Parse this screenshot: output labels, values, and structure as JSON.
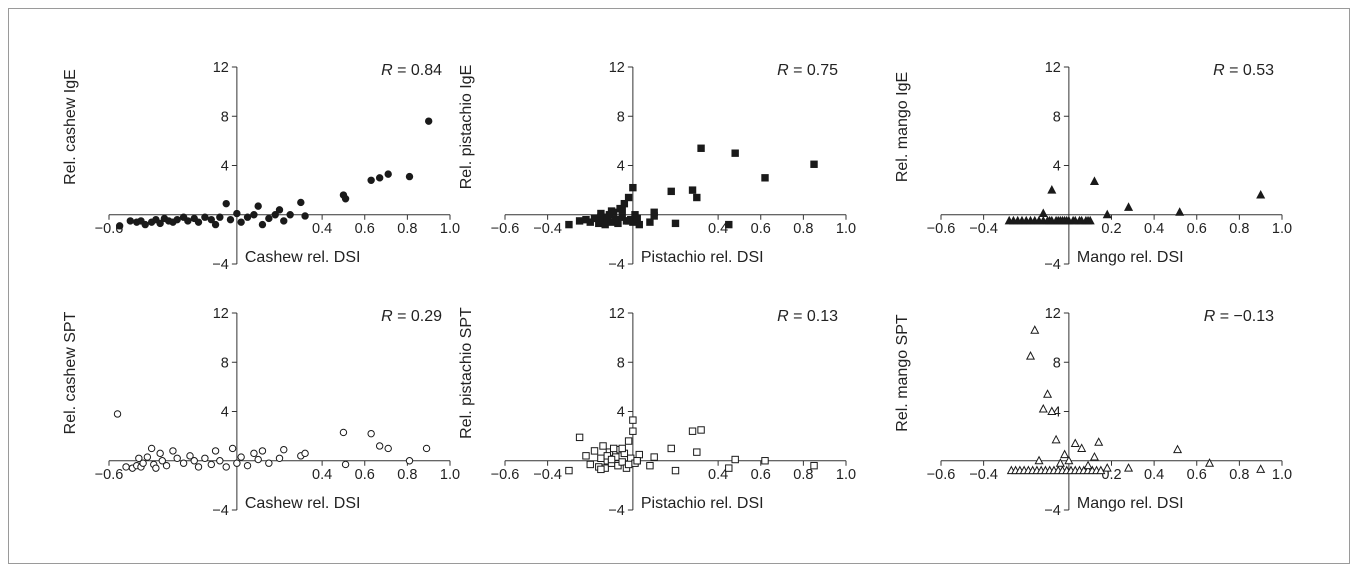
{
  "figure": {
    "panel_count": 6,
    "point_color": "#1a1a1a",
    "axis_color": "#333333"
  },
  "chart_data": [
    {
      "type": "scatter",
      "marker": "circle-filled",
      "xlabel": "Cashew rel. DSI",
      "ylabel": "Rel. cashew IgE",
      "annotation": {
        "italic": "R",
        "text": " = 0.84"
      },
      "xlim": [
        -0.6,
        1.0
      ],
      "ylim": [
        -4,
        12
      ],
      "xticks": [
        "−0.6",
        "0.4",
        "0.6",
        "0.8",
        "1.0"
      ],
      "yticks": [
        "12",
        "8",
        "4",
        "−4"
      ],
      "x": [
        -0.55,
        -0.5,
        -0.47,
        -0.45,
        -0.43,
        -0.4,
        -0.38,
        -0.36,
        -0.34,
        -0.32,
        -0.3,
        -0.28,
        -0.25,
        -0.23,
        -0.2,
        -0.18,
        -0.15,
        -0.12,
        -0.1,
        -0.08,
        -0.05,
        -0.03,
        0.0,
        0.02,
        0.05,
        0.08,
        0.1,
        0.12,
        0.15,
        0.18,
        0.2,
        0.22,
        0.25,
        0.3,
        0.32,
        0.5,
        0.51,
        0.63,
        0.67,
        0.71,
        0.81,
        0.9
      ],
      "y": [
        -0.9,
        -0.5,
        -0.6,
        -0.5,
        -0.8,
        -0.6,
        -0.4,
        -0.7,
        -0.3,
        -0.5,
        -0.6,
        -0.4,
        -0.2,
        -0.5,
        -0.3,
        -0.6,
        -0.2,
        -0.4,
        -0.8,
        -0.2,
        0.9,
        -0.4,
        0.1,
        -0.6,
        -0.2,
        0.0,
        0.7,
        -0.8,
        -0.3,
        0.0,
        0.4,
        -0.5,
        0.0,
        1.0,
        -0.1,
        1.6,
        1.3,
        2.8,
        3.0,
        3.3,
        3.1,
        7.6
      ]
    },
    {
      "type": "scatter",
      "marker": "square-filled",
      "xlabel": "Pistachio rel. DSI",
      "ylabel": "Rel. pistachio IgE",
      "annotation": {
        "italic": "R",
        "text": " = 0.75"
      },
      "xlim": [
        -0.6,
        1.0
      ],
      "ylim": [
        -4,
        12
      ],
      "xticks": [
        "−0.6",
        "−0.4",
        "0.4",
        "0.6",
        "0.8",
        "1.0"
      ],
      "yticks": [
        "12",
        "8",
        "4",
        "−4"
      ],
      "x": [
        -0.3,
        -0.25,
        -0.22,
        -0.2,
        -0.18,
        -0.16,
        -0.15,
        -0.14,
        -0.13,
        -0.12,
        -0.11,
        -0.1,
        -0.09,
        -0.08,
        -0.07,
        -0.06,
        -0.05,
        -0.04,
        -0.03,
        -0.02,
        -0.01,
        0.0,
        0.01,
        0.02,
        0.03,
        -0.15,
        -0.12,
        -0.1,
        -0.05,
        -0.02,
        0.0,
        0.02,
        0.08,
        0.1,
        0.1,
        0.18,
        0.2,
        0.28,
        0.3,
        0.32,
        0.45,
        0.48,
        0.62,
        0.85
      ],
      "y": [
        -0.8,
        -0.5,
        -0.4,
        -0.6,
        -0.3,
        -0.7,
        -0.2,
        -0.5,
        -0.8,
        -0.3,
        0.0,
        -0.6,
        0.2,
        -0.4,
        -0.7,
        0.5,
        -0.2,
        0.9,
        -0.5,
        1.4,
        -0.4,
        -0.6,
        0.0,
        -0.3,
        -0.8,
        0.1,
        -0.2,
        0.3,
        0.4,
        -0.5,
        2.2,
        -0.3,
        -0.6,
        -0.1,
        0.2,
        1.9,
        -0.7,
        2.0,
        1.4,
        5.4,
        -0.8,
        5.0,
        3.0,
        4.1
      ]
    },
    {
      "type": "scatter",
      "marker": "triangle-filled",
      "xlabel": "Mango rel. DSI",
      "ylabel": "Rel. mango IgE",
      "annotation": {
        "italic": "R",
        "text": " = 0.53"
      },
      "xlim": [
        -0.6,
        1.0
      ],
      "ylim": [
        -4,
        12
      ],
      "xticks": [
        "−0.6",
        "−0.4",
        "0.2",
        "0.4",
        "0.6",
        "0.8",
        "1.0"
      ],
      "yticks": [
        "12",
        "8",
        "4",
        "−4"
      ],
      "x": [
        -0.28,
        -0.26,
        -0.24,
        -0.22,
        -0.2,
        -0.18,
        -0.16,
        -0.14,
        -0.12,
        -0.1,
        -0.09,
        -0.08,
        -0.06,
        -0.05,
        -0.04,
        -0.03,
        -0.02,
        -0.01,
        0.0,
        0.02,
        0.03,
        0.05,
        0.06,
        0.08,
        0.09,
        0.1,
        -0.12,
        -0.08,
        0.12,
        0.18,
        0.28,
        0.52,
        0.9
      ],
      "y": [
        -0.5,
        -0.5,
        -0.5,
        -0.5,
        -0.5,
        -0.5,
        -0.5,
        -0.5,
        -0.5,
        -0.5,
        -0.5,
        -0.5,
        -0.5,
        -0.5,
        -0.5,
        -0.5,
        -0.5,
        -0.5,
        -0.5,
        -0.5,
        -0.5,
        -0.5,
        -0.5,
        -0.5,
        -0.5,
        -0.5,
        0.1,
        2.0,
        2.7,
        0.0,
        0.6,
        0.2,
        1.6
      ]
    },
    {
      "type": "scatter",
      "marker": "circle-open",
      "xlabel": "Cashew rel. DSI",
      "ylabel": "Rel. cashew SPT",
      "annotation": {
        "italic": "R",
        "text": " = 0.29"
      },
      "xlim": [
        -0.6,
        1.0
      ],
      "ylim": [
        -4,
        12
      ],
      "xticks": [
        "−0.6",
        "0.4",
        "0.6",
        "0.8",
        "1.0"
      ],
      "yticks": [
        "12",
        "8",
        "4",
        "−4"
      ],
      "x": [
        -0.56,
        -0.52,
        -0.49,
        -0.47,
        -0.46,
        -0.45,
        -0.44,
        -0.42,
        -0.4,
        -0.39,
        -0.38,
        -0.36,
        -0.35,
        -0.33,
        -0.3,
        -0.28,
        -0.25,
        -0.22,
        -0.2,
        -0.18,
        -0.15,
        -0.12,
        -0.1,
        -0.08,
        -0.05,
        -0.02,
        0.0,
        0.02,
        0.05,
        0.08,
        0.1,
        0.12,
        0.15,
        0.2,
        0.22,
        0.3,
        0.32,
        0.5,
        0.51,
        0.63,
        0.67,
        0.71,
        0.81,
        0.89
      ],
      "y": [
        3.8,
        -0.5,
        -0.6,
        -0.4,
        0.2,
        -0.5,
        -0.2,
        0.3,
        1.0,
        -0.3,
        -0.6,
        0.6,
        0.0,
        -0.4,
        0.8,
        0.2,
        -0.2,
        0.4,
        0.0,
        -0.5,
        0.2,
        -0.3,
        0.8,
        0.0,
        -0.5,
        1.0,
        -0.2,
        0.3,
        -0.4,
        0.6,
        0.1,
        0.8,
        -0.2,
        0.2,
        0.9,
        0.4,
        0.6,
        2.3,
        -0.3,
        2.2,
        1.2,
        1.0,
        0.0,
        1.0
      ]
    },
    {
      "type": "scatter",
      "marker": "square-open",
      "xlabel": "Pistachio rel. DSI",
      "ylabel": "Rel. pistachio SPT",
      "annotation": {
        "italic": "R",
        "text": " = 0.13"
      },
      "xlim": [
        -0.6,
        1.0
      ],
      "ylim": [
        -4,
        12
      ],
      "xticks": [
        "−0.6",
        "−0.4",
        "0.4",
        "0.6",
        "0.8",
        "1.0"
      ],
      "yticks": [
        "12",
        "8",
        "4",
        "−4"
      ],
      "x": [
        -0.3,
        -0.25,
        -0.22,
        -0.2,
        -0.18,
        -0.16,
        -0.15,
        -0.14,
        -0.13,
        -0.12,
        -0.11,
        -0.1,
        -0.09,
        -0.08,
        -0.07,
        -0.06,
        -0.05,
        -0.04,
        -0.03,
        -0.02,
        -0.01,
        0.0,
        0.01,
        0.02,
        0.03,
        -0.15,
        -0.12,
        -0.1,
        -0.05,
        -0.02,
        0.0,
        0.02,
        0.08,
        0.1,
        0.18,
        0.2,
        0.28,
        0.3,
        0.32,
        0.45,
        0.48,
        0.62,
        0.85
      ],
      "y": [
        -0.8,
        1.9,
        0.4,
        -0.3,
        0.8,
        -0.5,
        0.2,
        1.2,
        -0.6,
        0.0,
        0.7,
        -0.2,
        1.0,
        0.3,
        -0.4,
        0.9,
        -0.1,
        0.6,
        -0.6,
        1.6,
        0.2,
        3.3,
        -0.2,
        0.0,
        0.5,
        -0.7,
        0.4,
        0.1,
        1.0,
        -0.3,
        2.4,
        0.0,
        -0.4,
        0.3,
        1.0,
        -0.8,
        2.4,
        0.7,
        2.5,
        -0.6,
        0.1,
        0.0,
        -0.4
      ]
    },
    {
      "type": "scatter",
      "marker": "triangle-open",
      "xlabel": "Mango rel. DSI",
      "ylabel": "Rel. mango SPT",
      "annotation": {
        "italic": "R",
        "text": " = −0.13"
      },
      "xlim": [
        -0.6,
        1.0
      ],
      "ylim": [
        -4,
        12
      ],
      "xticks": [
        "−0.6",
        "−0.4",
        "0.2",
        "0.4",
        "0.6",
        "0.8",
        "1.0"
      ],
      "yticks": [
        "12",
        "8",
        "4",
        "−4"
      ],
      "x": [
        -0.27,
        -0.25,
        -0.23,
        -0.21,
        -0.19,
        -0.17,
        -0.15,
        -0.13,
        -0.11,
        -0.09,
        -0.07,
        -0.05,
        -0.03,
        -0.01,
        0.01,
        0.03,
        0.05,
        0.07,
        0.09,
        0.11,
        0.13,
        0.15,
        -0.18,
        -0.16,
        -0.14,
        -0.12,
        -0.1,
        -0.08,
        -0.06,
        -0.04,
        -0.02,
        0.0,
        0.03,
        0.06,
        0.09,
        0.12,
        0.14,
        0.18,
        0.28,
        0.51,
        0.66,
        0.9
      ],
      "y": [
        -0.8,
        -0.8,
        -0.8,
        -0.8,
        -0.8,
        -0.8,
        -0.8,
        -0.8,
        -0.8,
        -0.8,
        -0.8,
        -0.8,
        -0.8,
        -0.8,
        -0.8,
        -0.8,
        -0.8,
        -0.8,
        -0.8,
        -0.8,
        -0.8,
        -0.8,
        8.5,
        10.6,
        0.0,
        4.2,
        5.4,
        4.0,
        1.7,
        -0.2,
        0.5,
        0.0,
        1.4,
        1.0,
        -0.4,
        0.3,
        1.5,
        -0.6,
        -0.6,
        0.9,
        -0.2,
        -0.7
      ]
    }
  ]
}
